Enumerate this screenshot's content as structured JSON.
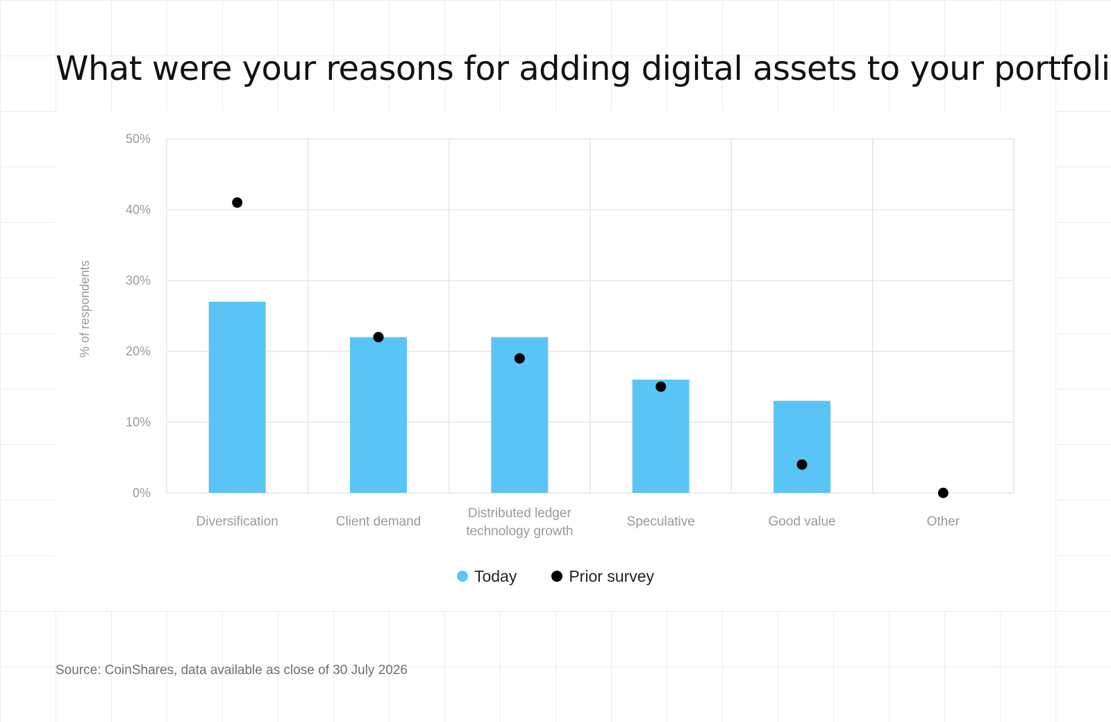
{
  "header": {
    "title": "What were your reasons for adding digital assets to your portfolio?"
  },
  "footer": {
    "source": "Source: CoinShares, data available as close of 30 July 2026"
  },
  "colors": {
    "today": "#5BC4F7",
    "prior": "#000000",
    "grid": "#e6e6e6",
    "axis_text": "#9a9a9a"
  },
  "chart_data": {
    "type": "bar",
    "title": "What were your reasons for adding digital assets to your portfolio?",
    "ylabel": "% of respondents",
    "xlabel": "",
    "ylim": [
      0,
      50
    ],
    "y_ticks": [
      "0%",
      "10%",
      "20%",
      "30%",
      "40%",
      "50%"
    ],
    "y_tick_values": [
      0,
      10,
      20,
      30,
      40,
      50
    ],
    "grid": true,
    "legend_position": "bottom",
    "categories": [
      [
        "Diversification"
      ],
      [
        "Client demand"
      ],
      [
        "Distributed ledger",
        "technology growth"
      ],
      [
        "Speculative"
      ],
      [
        "Good value"
      ],
      [
        "Other"
      ]
    ],
    "series": [
      {
        "name": "Today",
        "type": "bar",
        "values": [
          27,
          22,
          22,
          16,
          13,
          0
        ]
      },
      {
        "name": "Prior survey",
        "type": "scatter",
        "values": [
          41,
          22,
          19,
          15,
          4,
          0
        ]
      }
    ]
  }
}
